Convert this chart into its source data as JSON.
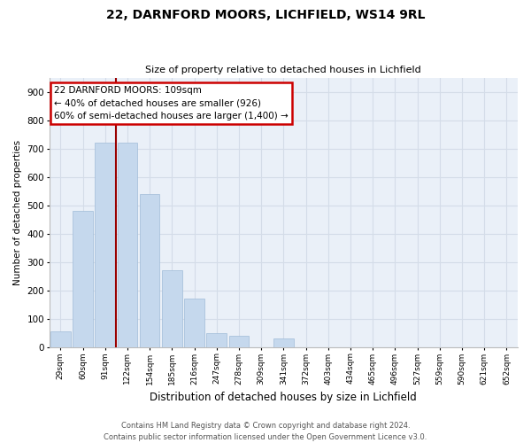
{
  "title1": "22, DARNFORD MOORS, LICHFIELD, WS14 9RL",
  "title2": "Size of property relative to detached houses in Lichfield",
  "xlabel": "Distribution of detached houses by size in Lichfield",
  "ylabel": "Number of detached properties",
  "categories": [
    "29sqm",
    "60sqm",
    "91sqm",
    "122sqm",
    "154sqm",
    "185sqm",
    "216sqm",
    "247sqm",
    "278sqm",
    "309sqm",
    "341sqm",
    "372sqm",
    "403sqm",
    "434sqm",
    "465sqm",
    "496sqm",
    "527sqm",
    "559sqm",
    "590sqm",
    "621sqm",
    "652sqm"
  ],
  "values": [
    55,
    480,
    720,
    720,
    540,
    270,
    170,
    50,
    40,
    0,
    30,
    0,
    0,
    0,
    0,
    0,
    0,
    0,
    0,
    0,
    0
  ],
  "bar_color": "#c5d8ed",
  "bar_edge_color": "#a0bcd8",
  "grid_color": "#d4dce8",
  "background_color": "#eaf0f8",
  "property_line_x": 2.5,
  "property_line_color": "#990000",
  "annotation_text": "22 DARNFORD MOORS: 109sqm\n← 40% of detached houses are smaller (926)\n60% of semi-detached houses are larger (1,400) →",
  "annotation_box_edge_color": "#cc0000",
  "ylim": [
    0,
    950
  ],
  "yticks": [
    0,
    100,
    200,
    300,
    400,
    500,
    600,
    700,
    800,
    900
  ],
  "footnote1": "Contains HM Land Registry data © Crown copyright and database right 2024.",
  "footnote2": "Contains public sector information licensed under the Open Government Licence v3.0.",
  "bar_width": 0.9
}
